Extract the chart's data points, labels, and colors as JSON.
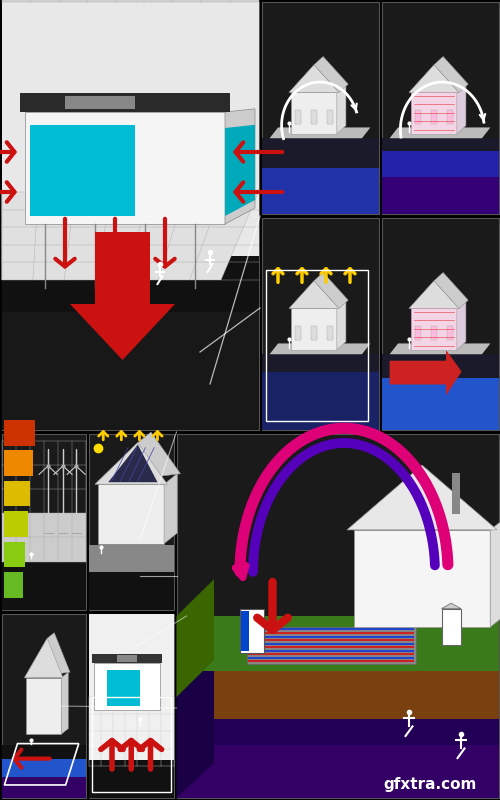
{
  "bg": "#000000",
  "watermark": "gfxtra.com",
  "wm_color": "#ffffff",
  "layout": {
    "large_tl": [
      0,
      0.46,
      0.52,
      0.54
    ],
    "tr_tl": [
      0.52,
      0.73,
      0.24,
      0.27
    ],
    "tr_tr": [
      0.76,
      0.73,
      0.24,
      0.27
    ],
    "tr_bl": [
      0.52,
      0.46,
      0.24,
      0.27
    ],
    "tr_br": [
      0.76,
      0.46,
      0.24,
      0.27
    ],
    "ml_l": [
      0,
      0.235,
      0.175,
      0.225
    ],
    "ml_r": [
      0.175,
      0.235,
      0.175,
      0.225
    ],
    "large_br": [
      0.35,
      0.0,
      0.65,
      0.46
    ],
    "bl_l": [
      0,
      0.0,
      0.175,
      0.235
    ],
    "bl_r": [
      0.175,
      0.0,
      0.175,
      0.235
    ]
  },
  "colors": {
    "panel_bg": "#1a1a1a",
    "panel_edge": "#555555",
    "dark_ground": "#222222",
    "black_base": "#111111",
    "white": "#ffffff",
    "light_gray": "#cccccc",
    "mid_gray": "#888888",
    "dark_gray": "#333333",
    "cyan": "#00bcd4",
    "red": "#cc2222",
    "deep_red": "#990000",
    "blue": "#2244cc",
    "dark_blue": "#1a2a6a",
    "purple": "#5500cc",
    "magenta": "#cc0077",
    "yellow": "#ffcc00",
    "green": "#3a7a1a",
    "bright_green": "#55aa22",
    "brown": "#7a4010",
    "dark_brown": "#4a2800",
    "orange": "#ff6600",
    "light_blue": "#4499dd",
    "pink": "#ffaacc",
    "lavender": "#9966cc"
  }
}
